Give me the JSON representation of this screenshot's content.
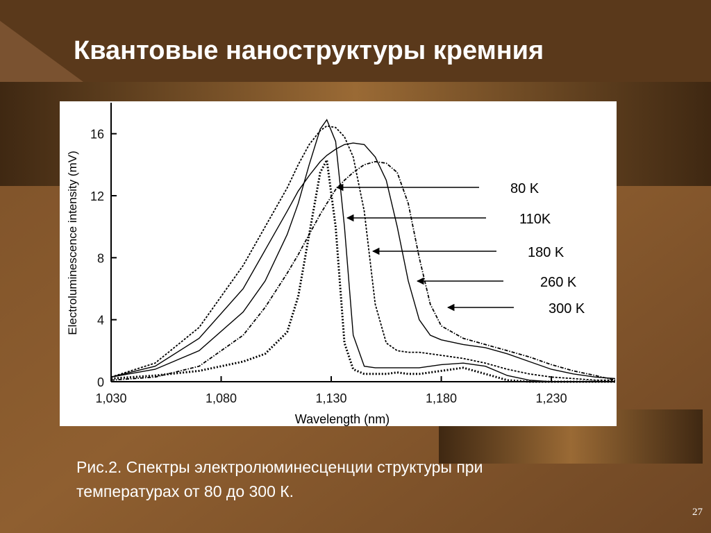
{
  "slide": {
    "title": "Квантовые наноструктуры кремния",
    "caption": [
      "Рис.2. Спектры электролюминесценции структуры при",
      "температурах от 80 до 300 К."
    ],
    "page_number": "27"
  },
  "chart_data": {
    "type": "line",
    "x_label": "Wavelength (nm)",
    "y_label": "Electroluminescence intensity (mV)",
    "x": [
      1030,
      1050,
      1070,
      1090,
      1100,
      1110,
      1115,
      1120,
      1125,
      1128,
      1132,
      1136,
      1140,
      1145,
      1150,
      1155,
      1160,
      1165,
      1170,
      1175,
      1180,
      1190,
      1200,
      1210,
      1220,
      1230,
      1240,
      1250,
      1259
    ],
    "xlim": [
      1030,
      1259
    ],
    "xticks": [
      {
        "value": 1030,
        "label": "1,030"
      },
      {
        "value": 1080,
        "label": "1,080"
      },
      {
        "value": 1130,
        "label": "1,130"
      },
      {
        "value": 1180,
        "label": "1,180"
      },
      {
        "value": 1230,
        "label": "1,230"
      }
    ],
    "ylim": [
      0,
      18
    ],
    "yticks": [
      0,
      4,
      8,
      12,
      16
    ],
    "series": [
      {
        "name": "80 K",
        "color": "#000000",
        "dash": "dotted-bold",
        "values": [
          0.2,
          0.4,
          0.7,
          1.3,
          1.8,
          3.2,
          5.5,
          9.5,
          13.5,
          14.3,
          10,
          2.5,
          0.8,
          0.5,
          0.5,
          0.5,
          0.6,
          0.5,
          0.5,
          0.6,
          0.7,
          0.9,
          0.5,
          0.1,
          0,
          0,
          0,
          0,
          0
        ]
      },
      {
        "name": "110K",
        "color": "#000000",
        "dash": "solid",
        "values": [
          0.3,
          0.8,
          2,
          4.5,
          6.5,
          9.5,
          11.5,
          14,
          16.3,
          16.9,
          15.5,
          10,
          3,
          1,
          0.9,
          0.9,
          0.9,
          0.9,
          0.9,
          1,
          1.1,
          1.2,
          1,
          0.4,
          0.1,
          0,
          0,
          0,
          0
        ]
      },
      {
        "name": "180 K",
        "color": "#000000",
        "dash": "dashed",
        "values": [
          0.3,
          1.2,
          3.5,
          7.5,
          10,
          12.5,
          14,
          15.3,
          16.2,
          16.5,
          16.4,
          15.8,
          14.5,
          11,
          5,
          2.5,
          2,
          1.9,
          1.9,
          1.8,
          1.7,
          1.5,
          1.2,
          0.8,
          0.5,
          0.3,
          0.2,
          0.1,
          0.1
        ]
      },
      {
        "name": "260 K",
        "color": "#000000",
        "dash": "solid",
        "values": [
          0.3,
          1,
          2.8,
          6,
          8.5,
          11,
          12.3,
          13.3,
          14.2,
          14.6,
          15,
          15.3,
          15.4,
          15.3,
          14.5,
          13,
          10,
          6.5,
          4,
          3,
          2.7,
          2.4,
          2.2,
          1.8,
          1.3,
          0.8,
          0.5,
          0.3,
          0.2
        ]
      },
      {
        "name": "300 K",
        "color": "#000000",
        "dash": "dash-dot",
        "values": [
          0.1,
          0.3,
          1,
          3,
          4.8,
          7,
          8.2,
          9.5,
          10.8,
          11.5,
          12.4,
          13,
          13.5,
          14,
          14.2,
          14.1,
          13.5,
          11.5,
          8,
          5,
          3.6,
          2.8,
          2.4,
          2,
          1.6,
          1.1,
          0.7,
          0.4,
          0.1
        ]
      }
    ]
  }
}
